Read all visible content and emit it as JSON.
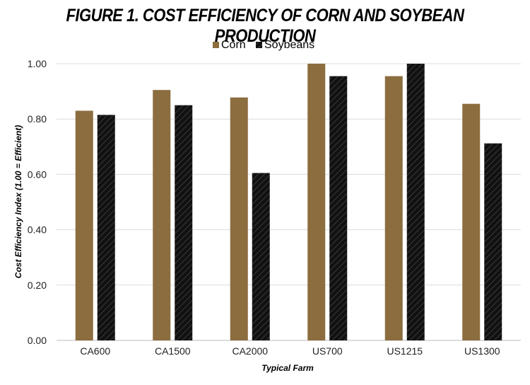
{
  "chart_data": {
    "type": "bar",
    "title": "FIGURE 1. COST EFFICIENCY OF CORN AND SOYBEAN PRODUCTION",
    "xlabel": "Typical Farm",
    "ylabel": "Cost Efficiency Index (1.00 = Efficient)",
    "categories": [
      "CA600",
      "CA1500",
      "CA2000",
      "US700",
      "US1215",
      "US1300"
    ],
    "series": [
      {
        "name": "Corn",
        "color": "#8b6d3f",
        "pattern": "solid",
        "values": [
          0.83,
          0.905,
          0.878,
          1.0,
          0.955,
          0.855
        ]
      },
      {
        "name": "Soybeans",
        "color": "#111111",
        "pattern": "hatched",
        "values": [
          0.815,
          0.85,
          0.605,
          0.955,
          1.0,
          0.712
        ]
      }
    ],
    "ylim": [
      0,
      1.0
    ],
    "yticks": [
      "0.00",
      "0.20",
      "0.40",
      "0.60",
      "0.80",
      "1.00"
    ],
    "grid": true,
    "legend_position": "top-center"
  }
}
